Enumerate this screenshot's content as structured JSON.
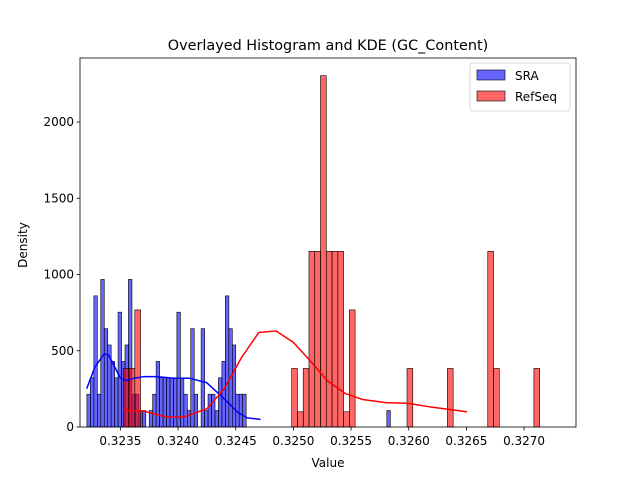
{
  "chart_data": {
    "type": "histogram",
    "title": "Overlayed Histogram and KDE (GC_Content)",
    "xlabel": "Value",
    "ylabel": "Density",
    "xlim": [
      0.32315,
      0.32745
    ],
    "ylim": [
      0,
      2420
    ],
    "x_ticks": [
      0.3235,
      0.324,
      0.3245,
      0.325,
      0.3255,
      0.326,
      0.3265,
      0.327
    ],
    "x_tick_labels": [
      "0.3235",
      "0.3240",
      "0.3245",
      "0.3250",
      "0.3255",
      "0.3260",
      "0.3265",
      "0.3270"
    ],
    "y_ticks": [
      0,
      500,
      1000,
      1500,
      2000
    ],
    "y_tick_labels": [
      "0",
      "500",
      "1000",
      "1500",
      "2000"
    ],
    "grid": false,
    "legend_position": "top-right",
    "series": [
      {
        "name": "SRA",
        "color": "#0000ff",
        "bin_width": 3.045e-05,
        "bins": [
          [
            0.32321,
            215
          ],
          [
            0.32324,
            323
          ],
          [
            0.32327,
            860
          ],
          [
            0.3233,
            215
          ],
          [
            0.32333,
            968
          ],
          [
            0.32336,
            645
          ],
          [
            0.32339,
            538
          ],
          [
            0.32342,
            430
          ],
          [
            0.32345,
            323
          ],
          [
            0.32348,
            753
          ],
          [
            0.32351,
            430
          ],
          [
            0.32354,
            538
          ],
          [
            0.32357,
            968
          ],
          [
            0.3236,
            215
          ],
          [
            0.32363,
            215
          ],
          [
            0.32366,
            108
          ],
          [
            0.32369,
            108
          ],
          [
            0.32375,
            108
          ],
          [
            0.32378,
            215
          ],
          [
            0.32381,
            430
          ],
          [
            0.32384,
            323
          ],
          [
            0.32387,
            323
          ],
          [
            0.3239,
            323
          ],
          [
            0.32393,
            323
          ],
          [
            0.32396,
            323
          ],
          [
            0.32399,
            753
          ],
          [
            0.32402,
            323
          ],
          [
            0.32405,
            215
          ],
          [
            0.32408,
            108
          ],
          [
            0.32411,
            645
          ],
          [
            0.32414,
            215
          ],
          [
            0.3242,
            645
          ],
          [
            0.32423,
            108
          ],
          [
            0.32426,
            215
          ],
          [
            0.32429,
            215
          ],
          [
            0.32432,
            108
          ],
          [
            0.32435,
            323
          ],
          [
            0.32438,
            430
          ],
          [
            0.32441,
            860
          ],
          [
            0.32444,
            645
          ],
          [
            0.32447,
            538
          ],
          [
            0.3245,
            215
          ],
          [
            0.32453,
            215
          ],
          [
            0.32456,
            215
          ],
          [
            0.32581,
            108
          ]
        ],
        "kde": [
          [
            0.32321,
            255
          ],
          [
            0.32328,
            395
          ],
          [
            0.32336,
            480
          ],
          [
            0.3234,
            470
          ],
          [
            0.32345,
            395
          ],
          [
            0.3235,
            320
          ],
          [
            0.32355,
            305
          ],
          [
            0.32362,
            320
          ],
          [
            0.3237,
            330
          ],
          [
            0.3238,
            330
          ],
          [
            0.3239,
            325
          ],
          [
            0.32395,
            320
          ],
          [
            0.3241,
            320
          ],
          [
            0.32425,
            290
          ],
          [
            0.3244,
            185
          ],
          [
            0.32452,
            95
          ],
          [
            0.3246,
            60
          ],
          [
            0.32471,
            50
          ]
        ]
      },
      {
        "name": "RefSeq",
        "color": "#ff0000",
        "bin_width": 5e-05,
        "bins": [
          [
            0.323525,
            384
          ],
          [
            0.323575,
            384
          ],
          [
            0.323625,
            768
          ],
          [
            0.324985,
            384
          ],
          [
            0.325037,
            100
          ],
          [
            0.325085,
            384
          ],
          [
            0.325135,
            1152
          ],
          [
            0.325185,
            1152
          ],
          [
            0.325235,
            2304
          ],
          [
            0.325285,
            1152
          ],
          [
            0.325335,
            1152
          ],
          [
            0.325385,
            1152
          ],
          [
            0.325435,
            100
          ],
          [
            0.325485,
            768
          ],
          [
            0.325985,
            384
          ],
          [
            0.326335,
            384
          ],
          [
            0.326685,
            1152
          ],
          [
            0.326735,
            384
          ],
          [
            0.327085,
            384
          ]
        ],
        "kde": [
          [
            0.32353,
            110
          ],
          [
            0.3237,
            105
          ],
          [
            0.3239,
            65
          ],
          [
            0.32405,
            65
          ],
          [
            0.32425,
            120
          ],
          [
            0.3244,
            250
          ],
          [
            0.32455,
            455
          ],
          [
            0.3247,
            620
          ],
          [
            0.32485,
            630
          ],
          [
            0.325,
            555
          ],
          [
            0.32515,
            430
          ],
          [
            0.3253,
            300
          ],
          [
            0.32545,
            220
          ],
          [
            0.3256,
            180
          ],
          [
            0.3258,
            160
          ],
          [
            0.326,
            155
          ],
          [
            0.3262,
            130
          ],
          [
            0.3265,
            100
          ]
        ]
      }
    ]
  }
}
